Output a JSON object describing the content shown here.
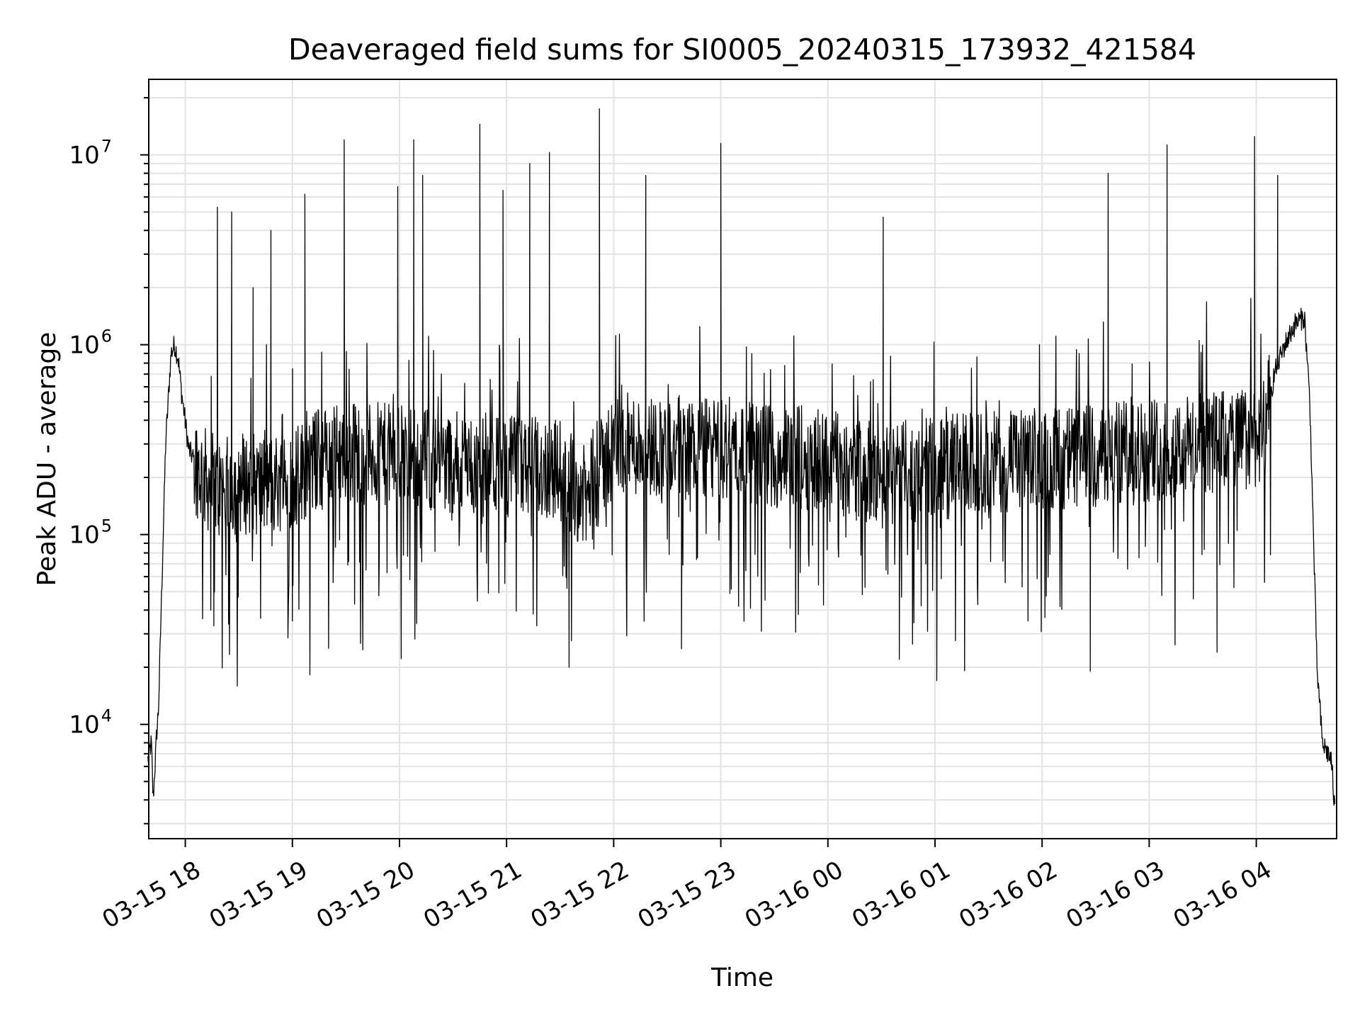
{
  "chart_data": {
    "type": "line",
    "title": "Deaveraged field sums for SI0005_20240315_173932_421584",
    "xlabel": "Time",
    "ylabel": "Peak ADU - average",
    "yscale": "log",
    "ylim": [
      2500,
      25000000
    ],
    "xlim": [
      "2024-03-15 17:39:32",
      "2024-03-16 04:45:00"
    ],
    "grid": true,
    "line_color": "#000000",
    "x_ticks": [
      {
        "label": "03-15 18",
        "time": "2024-03-15 18:00"
      },
      {
        "label": "03-15 19",
        "time": "2024-03-15 19:00"
      },
      {
        "label": "03-15 20",
        "time": "2024-03-15 20:00"
      },
      {
        "label": "03-15 21",
        "time": "2024-03-15 21:00"
      },
      {
        "label": "03-15 22",
        "time": "2024-03-15 22:00"
      },
      {
        "label": "03-15 23",
        "time": "2024-03-15 23:00"
      },
      {
        "label": "03-16 00",
        "time": "2024-03-16 00:00"
      },
      {
        "label": "03-16 01",
        "time": "2024-03-16 01:00"
      },
      {
        "label": "03-16 02",
        "time": "2024-03-16 02:00"
      },
      {
        "label": "03-16 03",
        "time": "2024-03-16 03:00"
      },
      {
        "label": "03-16 04",
        "time": "2024-03-16 04:00"
      }
    ],
    "y_ticks": [
      {
        "base": "10",
        "exp": "4",
        "value": 10000
      },
      {
        "base": "10",
        "exp": "5",
        "value": 100000
      },
      {
        "base": "10",
        "exp": "6",
        "value": 1000000
      },
      {
        "base": "10",
        "exp": "7",
        "value": 10000000
      }
    ],
    "series": [
      {
        "points": [
          [
            "2024-03-15 17:39",
            6500
          ],
          [
            "2024-03-15 17:41",
            8000
          ],
          [
            "2024-03-15 17:42",
            4000
          ],
          [
            "2024-03-15 17:44",
            9000
          ],
          [
            "2024-03-15 17:45",
            12000
          ],
          [
            "2024-03-15 17:47",
            60000
          ],
          [
            "2024-03-15 17:49",
            300000
          ],
          [
            "2024-03-15 17:52",
            900000
          ],
          [
            "2024-03-15 17:54",
            1000000
          ],
          [
            "2024-03-15 17:56",
            850000
          ],
          [
            "2024-03-15 17:58",
            550000
          ],
          [
            "2024-03-15 18:02",
            280000
          ],
          [
            "2024-03-15 18:10",
            200000
          ],
          [
            "2024-03-15 18:20",
            170000
          ],
          [
            "2024-03-15 18:30",
            190000
          ],
          [
            "2024-03-15 18:45",
            180000
          ],
          [
            "2024-03-15 19:00",
            200000
          ],
          [
            "2024-03-15 19:15",
            250000
          ],
          [
            "2024-03-15 19:30",
            270000
          ],
          [
            "2024-03-15 20:00",
            260000
          ],
          [
            "2024-03-15 20:30",
            240000
          ],
          [
            "2024-03-15 21:00",
            230000
          ],
          [
            "2024-03-15 21:30",
            220000
          ],
          [
            "2024-03-15 21:45",
            150000
          ],
          [
            "2024-03-15 22:00",
            300000
          ],
          [
            "2024-03-15 22:30",
            290000
          ],
          [
            "2024-03-15 23:00",
            280000
          ],
          [
            "2024-03-15 23:30",
            260000
          ],
          [
            "2024-03-16 00:00",
            250000
          ],
          [
            "2024-03-16 00:30",
            200000
          ],
          [
            "2024-03-16 01:00",
            230000
          ],
          [
            "2024-03-16 01:30",
            240000
          ],
          [
            "2024-03-16 02:00",
            250000
          ],
          [
            "2024-03-16 02:30",
            260000
          ],
          [
            "2024-03-16 03:00",
            280000
          ],
          [
            "2024-03-16 03:30",
            300000
          ],
          [
            "2024-03-16 03:55",
            320000
          ],
          [
            "2024-03-16 04:05",
            350000
          ],
          [
            "2024-03-16 04:10",
            700000
          ],
          [
            "2024-03-16 04:16",
            1000000
          ],
          [
            "2024-03-16 04:22",
            1300000
          ],
          [
            "2024-03-16 04:27",
            1400000
          ],
          [
            "2024-03-16 04:30",
            500000
          ],
          [
            "2024-03-16 04:34",
            20000
          ],
          [
            "2024-03-16 04:37",
            8000
          ],
          [
            "2024-03-16 04:42",
            6500
          ],
          [
            "2024-03-16 04:44",
            3500
          ]
        ],
        "spikes": [
          [
            "2024-03-15 18:18",
            5300000
          ],
          [
            "2024-03-15 18:26",
            5000000
          ],
          [
            "2024-03-15 18:38",
            2000000
          ],
          [
            "2024-03-15 18:48",
            4000000
          ],
          [
            "2024-03-15 19:07",
            6200000
          ],
          [
            "2024-03-15 19:29",
            12000000
          ],
          [
            "2024-03-15 19:59",
            6800000
          ],
          [
            "2024-03-15 20:08",
            12000000
          ],
          [
            "2024-03-15 20:13",
            7800000
          ],
          [
            "2024-03-15 20:45",
            14500000
          ],
          [
            "2024-03-15 20:58",
            6500000
          ],
          [
            "2024-03-15 21:13",
            9000000
          ],
          [
            "2024-03-15 21:24",
            10300000
          ],
          [
            "2024-03-15 21:52",
            17500000
          ],
          [
            "2024-03-15 22:18",
            7800000
          ],
          [
            "2024-03-15 23:00",
            11500000
          ],
          [
            "2024-03-16 00:31",
            4700000
          ],
          [
            "2024-03-16 02:37",
            8000000
          ],
          [
            "2024-03-16 03:10",
            11300000
          ],
          [
            "2024-03-16 03:59",
            12500000
          ],
          [
            "2024-03-16 04:12",
            7800000
          ]
        ],
        "dips": [
          [
            "2024-03-15 18:16",
            33000
          ],
          [
            "2024-03-15 19:00",
            35000
          ],
          [
            "2024-03-15 21:35",
            20000
          ],
          [
            "2024-03-15 22:38",
            25000
          ],
          [
            "2024-03-16 00:40",
            22000
          ],
          [
            "2024-03-16 01:01",
            17000
          ],
          [
            "2024-03-16 02:27",
            19000
          ],
          [
            "2024-03-16 03:38",
            24000
          ]
        ]
      }
    ]
  }
}
